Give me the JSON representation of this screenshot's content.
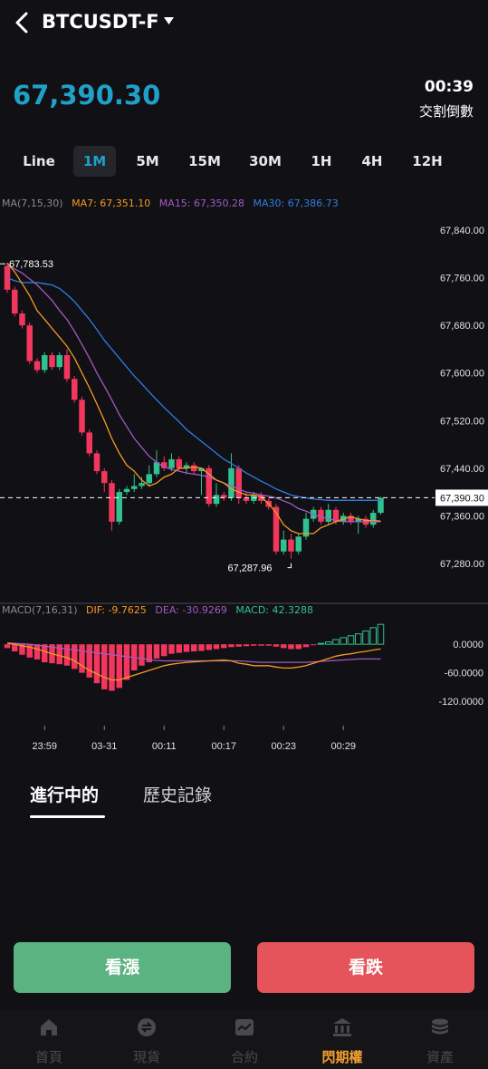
{
  "header": {
    "title": "BTCUSDT-F"
  },
  "price": {
    "current": "67,390.30",
    "countdown": "00:39",
    "countdown_label": "交割倒數"
  },
  "timeframes": [
    {
      "label": "Line",
      "active": false
    },
    {
      "label": "1M",
      "active": true
    },
    {
      "label": "5M",
      "active": false
    },
    {
      "label": "15M",
      "active": false
    },
    {
      "label": "30M",
      "active": false
    },
    {
      "label": "1H",
      "active": false
    },
    {
      "label": "4H",
      "active": false
    },
    {
      "label": "12H",
      "active": false
    }
  ],
  "ma_legend": {
    "params": "MA(7,15,30)",
    "ma7": "MA7: 67,351.10",
    "ma15": "MA15: 67,350.28",
    "ma30": "MA30: 67,386.73"
  },
  "macd_legend": {
    "params": "MACD(7,16,31)",
    "dif": "DIF: -9.7625",
    "dea": "DEA: -30.9269",
    "macd": "MACD: 42.3288"
  },
  "colors": {
    "accent": "#1fa1c9",
    "up": "#2fc28e",
    "down": "#f2365d",
    "ma7": "#f59a23",
    "ma15": "#a15bc4",
    "ma30": "#2e7ee6",
    "active_nav": "#f0a030"
  },
  "chart_data": {
    "type": "candlestick",
    "price_axis_ticks": [
      "67,840.00",
      "67,760.00",
      "67,680.00",
      "67,600.00",
      "67,520.00",
      "67,440.00",
      "67,360.00",
      "67,280.00"
    ],
    "price_ylim": [
      67260,
      67860
    ],
    "current_price_label": "67,390.30",
    "current_price": 67390.3,
    "high_label": "67,783.53",
    "high_value": 67783.53,
    "low_label": "67,287.96",
    "low_value": 67287.96,
    "time_labels": [
      "23:59",
      "03-31",
      "00:11",
      "00:17",
      "00:23",
      "00:29"
    ],
    "time_label_index": [
      5,
      13,
      21,
      29,
      37,
      45
    ],
    "candles": [
      [
        67780,
        67740,
        67785,
        67735
      ],
      [
        67740,
        67700,
        67745,
        67695
      ],
      [
        67700,
        67680,
        67705,
        67675
      ],
      [
        67680,
        67620,
        67685,
        67615
      ],
      [
        67620,
        67605,
        67625,
        67600
      ],
      [
        67605,
        67630,
        67635,
        67600
      ],
      [
        67630,
        67610,
        67635,
        67605
      ],
      [
        67610,
        67630,
        67635,
        67605
      ],
      [
        67630,
        67590,
        67640,
        67585
      ],
      [
        67590,
        67555,
        67595,
        67550
      ],
      [
        67555,
        67500,
        67560,
        67495
      ],
      [
        67500,
        67465,
        67505,
        67460
      ],
      [
        67465,
        67435,
        67470,
        67430
      ],
      [
        67435,
        67415,
        67440,
        67400
      ],
      [
        67415,
        67350,
        67420,
        67335
      ],
      [
        67350,
        67400,
        67405,
        67345
      ],
      [
        67400,
        67405,
        67410,
        67395
      ],
      [
        67405,
        67410,
        67430,
        67400
      ],
      [
        67410,
        67415,
        67425,
        67405
      ],
      [
        67415,
        67430,
        67445,
        67410
      ],
      [
        67430,
        67450,
        67470,
        67425
      ],
      [
        67450,
        67440,
        67460,
        67435
      ],
      [
        67440,
        67455,
        67465,
        67435
      ],
      [
        67455,
        67440,
        67460,
        67435
      ],
      [
        67440,
        67445,
        67450,
        67430
      ],
      [
        67445,
        67435,
        67450,
        67430
      ],
      [
        67435,
        67440,
        67440,
        67395
      ],
      [
        67440,
        67380,
        67445,
        67375
      ],
      [
        67380,
        67395,
        67415,
        67375
      ],
      [
        67395,
        67390,
        67400,
        67385
      ],
      [
        67390,
        67440,
        67465,
        67385
      ],
      [
        67440,
        67390,
        67445,
        67380
      ],
      [
        67390,
        67385,
        67400,
        67380
      ],
      [
        67385,
        67395,
        67400,
        67380
      ],
      [
        67395,
        67385,
        67400,
        67380
      ],
      [
        67385,
        67375,
        67390,
        67370
      ],
      [
        67375,
        67300,
        67380,
        67295
      ],
      [
        67300,
        67320,
        67335,
        67295
      ],
      [
        67320,
        67300,
        67330,
        67288
      ],
      [
        67300,
        67325,
        67330,
        67295
      ],
      [
        67325,
        67355,
        67365,
        67320
      ],
      [
        67355,
        67370,
        67375,
        67350
      ],
      [
        67370,
        67350,
        67375,
        67345
      ],
      [
        67350,
        67370,
        67380,
        67345
      ],
      [
        67370,
        67350,
        67375,
        67345
      ],
      [
        67350,
        67360,
        67365,
        67345
      ],
      [
        67360,
        67350,
        67365,
        67345
      ],
      [
        67350,
        67355,
        67360,
        67330
      ],
      [
        67355,
        67345,
        67360,
        67340
      ],
      [
        67345,
        67365,
        67370,
        67340
      ],
      [
        67365,
        67390,
        67392,
        67362
      ]
    ],
    "ma7": [
      67785,
      67770,
      67750,
      67730,
      67705,
      67690,
      67675,
      67660,
      67645,
      67625,
      67600,
      67575,
      67548,
      67520,
      67490,
      67465,
      67445,
      67435,
      67420,
      67410,
      67415,
      67425,
      67430,
      67440,
      67440,
      67442,
      67440,
      67430,
      67420,
      67415,
      67405,
      67400,
      67395,
      67395,
      67392,
      67380,
      67365,
      67345,
      67335,
      67330,
      67330,
      67330,
      67340,
      67345,
      67350,
      67355,
      67358,
      67355,
      67352,
      67352,
      67351
    ],
    "ma15": [
      67780,
      67775,
      67768,
      67758,
      67748,
      67735,
      67722,
      67705,
      67690,
      67670,
      67648,
      67625,
      67600,
      67578,
      67555,
      67530,
      67510,
      67490,
      67475,
      67460,
      67450,
      67442,
      67438,
      67435,
      67432,
      67430,
      67428,
      67425,
      67420,
      67415,
      67410,
      67405,
      67400,
      67398,
      67395,
      67393,
      67390,
      67385,
      67380,
      67372,
      67368,
      67362,
      67358,
      67355,
      67352,
      67350,
      67350,
      67350,
      67350,
      67350,
      67350
    ],
    "ma30": [
      67760,
      67755,
      67752,
      67752,
      67752,
      67750,
      67748,
      67742,
      67732,
      67720,
      67705,
      67690,
      67673,
      67655,
      67640,
      67625,
      67610,
      67595,
      67582,
      67568,
      67555,
      67542,
      67530,
      67518,
      67505,
      67495,
      67485,
      67475,
      67465,
      67455,
      67448,
      67440,
      67432,
      67425,
      67418,
      67412,
      67405,
      67400,
      67395,
      67392,
      67390,
      67388,
      67387,
      67386,
      67386,
      67386,
      67386,
      67386,
      67386,
      67386,
      67386
    ],
    "macd_axis_ticks": [
      "0.0000",
      "-60.0000",
      "-120.0000"
    ],
    "macd_ylim": [
      -160,
      50
    ],
    "macd_hist": [
      -8,
      -15,
      -22,
      -28,
      -32,
      -38,
      -40,
      -42,
      -45,
      -52,
      -60,
      -70,
      -82,
      -95,
      -98,
      -92,
      -75,
      -55,
      -45,
      -38,
      -30,
      -25,
      -20,
      -18,
      -16,
      -15,
      -14,
      -12,
      -10,
      -8,
      -6,
      -5,
      -4,
      -3,
      -3,
      -3,
      -5,
      -8,
      -10,
      -10,
      -6,
      -2,
      2,
      5,
      10,
      14,
      18,
      22,
      28,
      35,
      42
    ],
    "macd_dif": [
      2,
      0,
      -3,
      -6,
      -10,
      -15,
      -20,
      -24,
      -28,
      -35,
      -45,
      -55,
      -62,
      -70,
      -75,
      -75,
      -70,
      -65,
      -60,
      -55,
      -50,
      -45,
      -42,
      -40,
      -38,
      -37,
      -36,
      -35,
      -34,
      -33,
      -35,
      -40,
      -42,
      -45,
      -45,
      -45,
      -48,
      -50,
      -50,
      -48,
      -45,
      -40,
      -35,
      -30,
      -25,
      -22,
      -20,
      -17,
      -15,
      -12,
      -10
    ],
    "macd_dea": [
      3,
      2,
      1,
      0,
      -2,
      -4,
      -6,
      -8,
      -10,
      -12,
      -14,
      -16,
      -18,
      -20,
      -22,
      -24,
      -26,
      -28,
      -30,
      -32,
      -34,
      -35,
      -35,
      -35,
      -35,
      -35,
      -35,
      -35,
      -35,
      -35,
      -35,
      -35,
      -36,
      -37,
      -38,
      -38,
      -38,
      -38,
      -38,
      -38,
      -38,
      -37,
      -36,
      -35,
      -34,
      -33,
      -32,
      -31,
      -31,
      -31,
      -31
    ]
  },
  "tabs": [
    {
      "label": "進行中的",
      "active": true
    },
    {
      "label": "歷史記錄",
      "active": false
    }
  ],
  "actions": {
    "up_label": "看漲",
    "down_label": "看跌"
  },
  "nav": [
    {
      "label": "首頁",
      "icon": "home-icon",
      "active": false
    },
    {
      "label": "現貨",
      "icon": "exchange-icon",
      "active": false
    },
    {
      "label": "合約",
      "icon": "chart-icon",
      "active": false
    },
    {
      "label": "閃期權",
      "icon": "bank-icon",
      "active": true
    },
    {
      "label": "資產",
      "icon": "coins-icon",
      "active": false
    }
  ]
}
